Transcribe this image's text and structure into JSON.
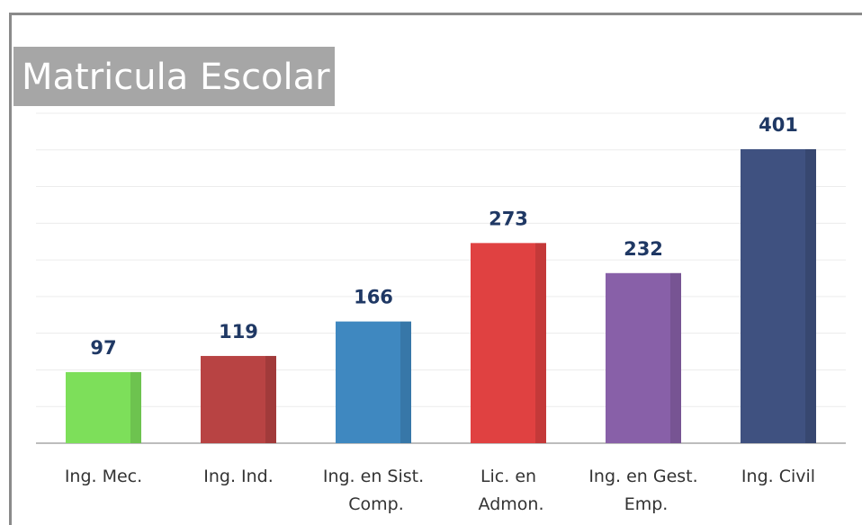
{
  "chart_data": {
    "type": "bar",
    "title": "Matricula Escolar",
    "categories": [
      "Ing. Mec.",
      "Ing. Ind.",
      "Ing. en Sist. Comp.",
      "Lic. en Admon.",
      "Ing. en Gest. Emp.",
      "Ing. Civil"
    ],
    "values": [
      97,
      119,
      166,
      273,
      232,
      401
    ],
    "colors": [
      "#7ddf5a",
      "#b84343",
      "#3f88c0",
      "#e04141",
      "#8860a8",
      "#3f5180"
    ],
    "ylim": [
      0,
      450
    ],
    "yticks": [
      0,
      50,
      100,
      150,
      200,
      250,
      300,
      350,
      400,
      450
    ],
    "grid": true
  }
}
